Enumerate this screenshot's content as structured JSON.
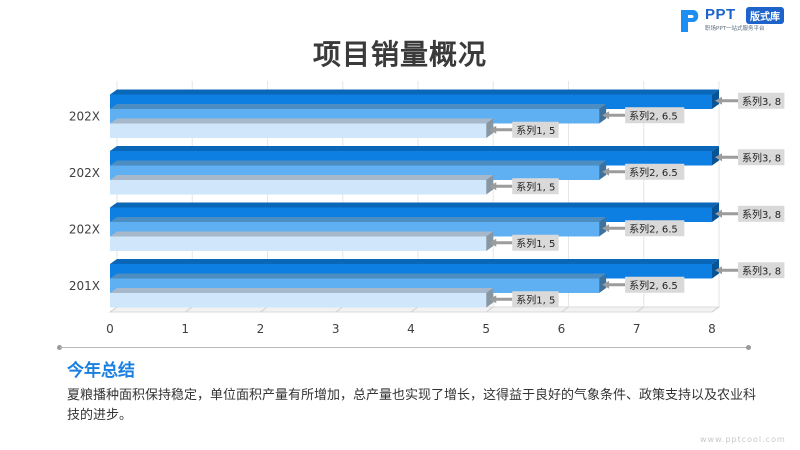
{
  "brand": {
    "logo_text": "PPT",
    "badge": "版式库",
    "tagline": "职场PPT一站式服务平台"
  },
  "title": "项目销量概况",
  "chart_data": {
    "type": "bar",
    "orientation": "horizontal",
    "style": "3d",
    "categories": [
      "201X",
      "202X",
      "202X",
      "202X"
    ],
    "series": [
      {
        "name": "系列1",
        "values": [
          5,
          5,
          5,
          5
        ],
        "color": "#cfe6fb"
      },
      {
        "name": "系列2",
        "values": [
          6.5,
          6.5,
          6.5,
          6.5
        ],
        "color": "#5fb0f3"
      },
      {
        "name": "系列3",
        "values": [
          8,
          8,
          8,
          8
        ],
        "color": "#0d7fe3"
      }
    ],
    "data_labels": [
      "系列1, 5",
      "系列2, 6.5",
      "系列3, 8"
    ],
    "xlim": [
      0,
      8
    ],
    "x_ticks": [
      "0",
      "1",
      "2",
      "3",
      "4",
      "5",
      "6",
      "7",
      "8"
    ],
    "grid": true,
    "legend": "none"
  },
  "summary": {
    "heading": "今年总结",
    "body": "夏粮播种面积保持稳定，单位面积产量有所增加，总产量也实现了增长，这得益于良好的气象条件、政策支持以及农业科技的进步。"
  },
  "watermark": "www.pptcool.com"
}
